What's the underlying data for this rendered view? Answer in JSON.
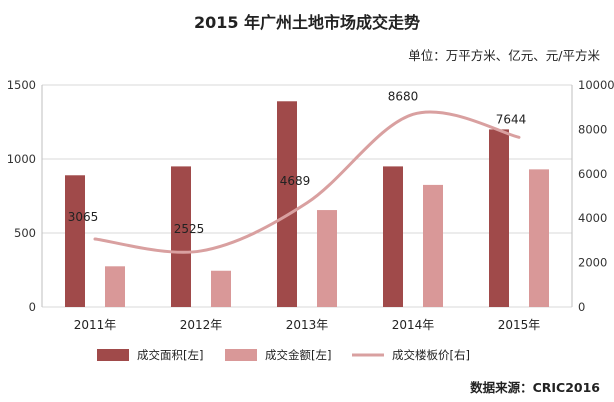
{
  "chart_data": {
    "type": "bar",
    "title": "2015 年广州土地市场成交走势",
    "subtitle": "单位：万平方米、亿元、元/平方米",
    "categories": [
      "2011年",
      "2012年",
      "2013年",
      "2014年",
      "2015年"
    ],
    "y_left_ticks": [
      "0",
      "500",
      "1000",
      "1500"
    ],
    "y_right_ticks": [
      "0",
      "2000",
      "4000",
      "6000",
      "8000",
      "10000"
    ],
    "ylim_left": [
      0,
      1500
    ],
    "ylim_right": [
      0,
      10000
    ],
    "grid": true,
    "legend_position": "bottom",
    "series": [
      {
        "name": "成交面积[左]",
        "type": "bar",
        "axis": "left",
        "color": "#a04a4a",
        "values": [
          890,
          950,
          1390,
          950,
          1200
        ]
      },
      {
        "name": "成交金额[左]",
        "type": "bar",
        "axis": "left",
        "color": "#d99898",
        "values": [
          275,
          245,
          655,
          825,
          930
        ]
      },
      {
        "name": "成交楼板价[右]",
        "type": "line",
        "axis": "right",
        "color": "#d9a0a0",
        "values": [
          3065,
          2525,
          4689,
          8680,
          7644
        ],
        "data_labels": [
          "3065",
          "2525",
          "4689",
          "8680",
          "7644"
        ]
      }
    ],
    "source": "数据来源：CRIC2016"
  }
}
